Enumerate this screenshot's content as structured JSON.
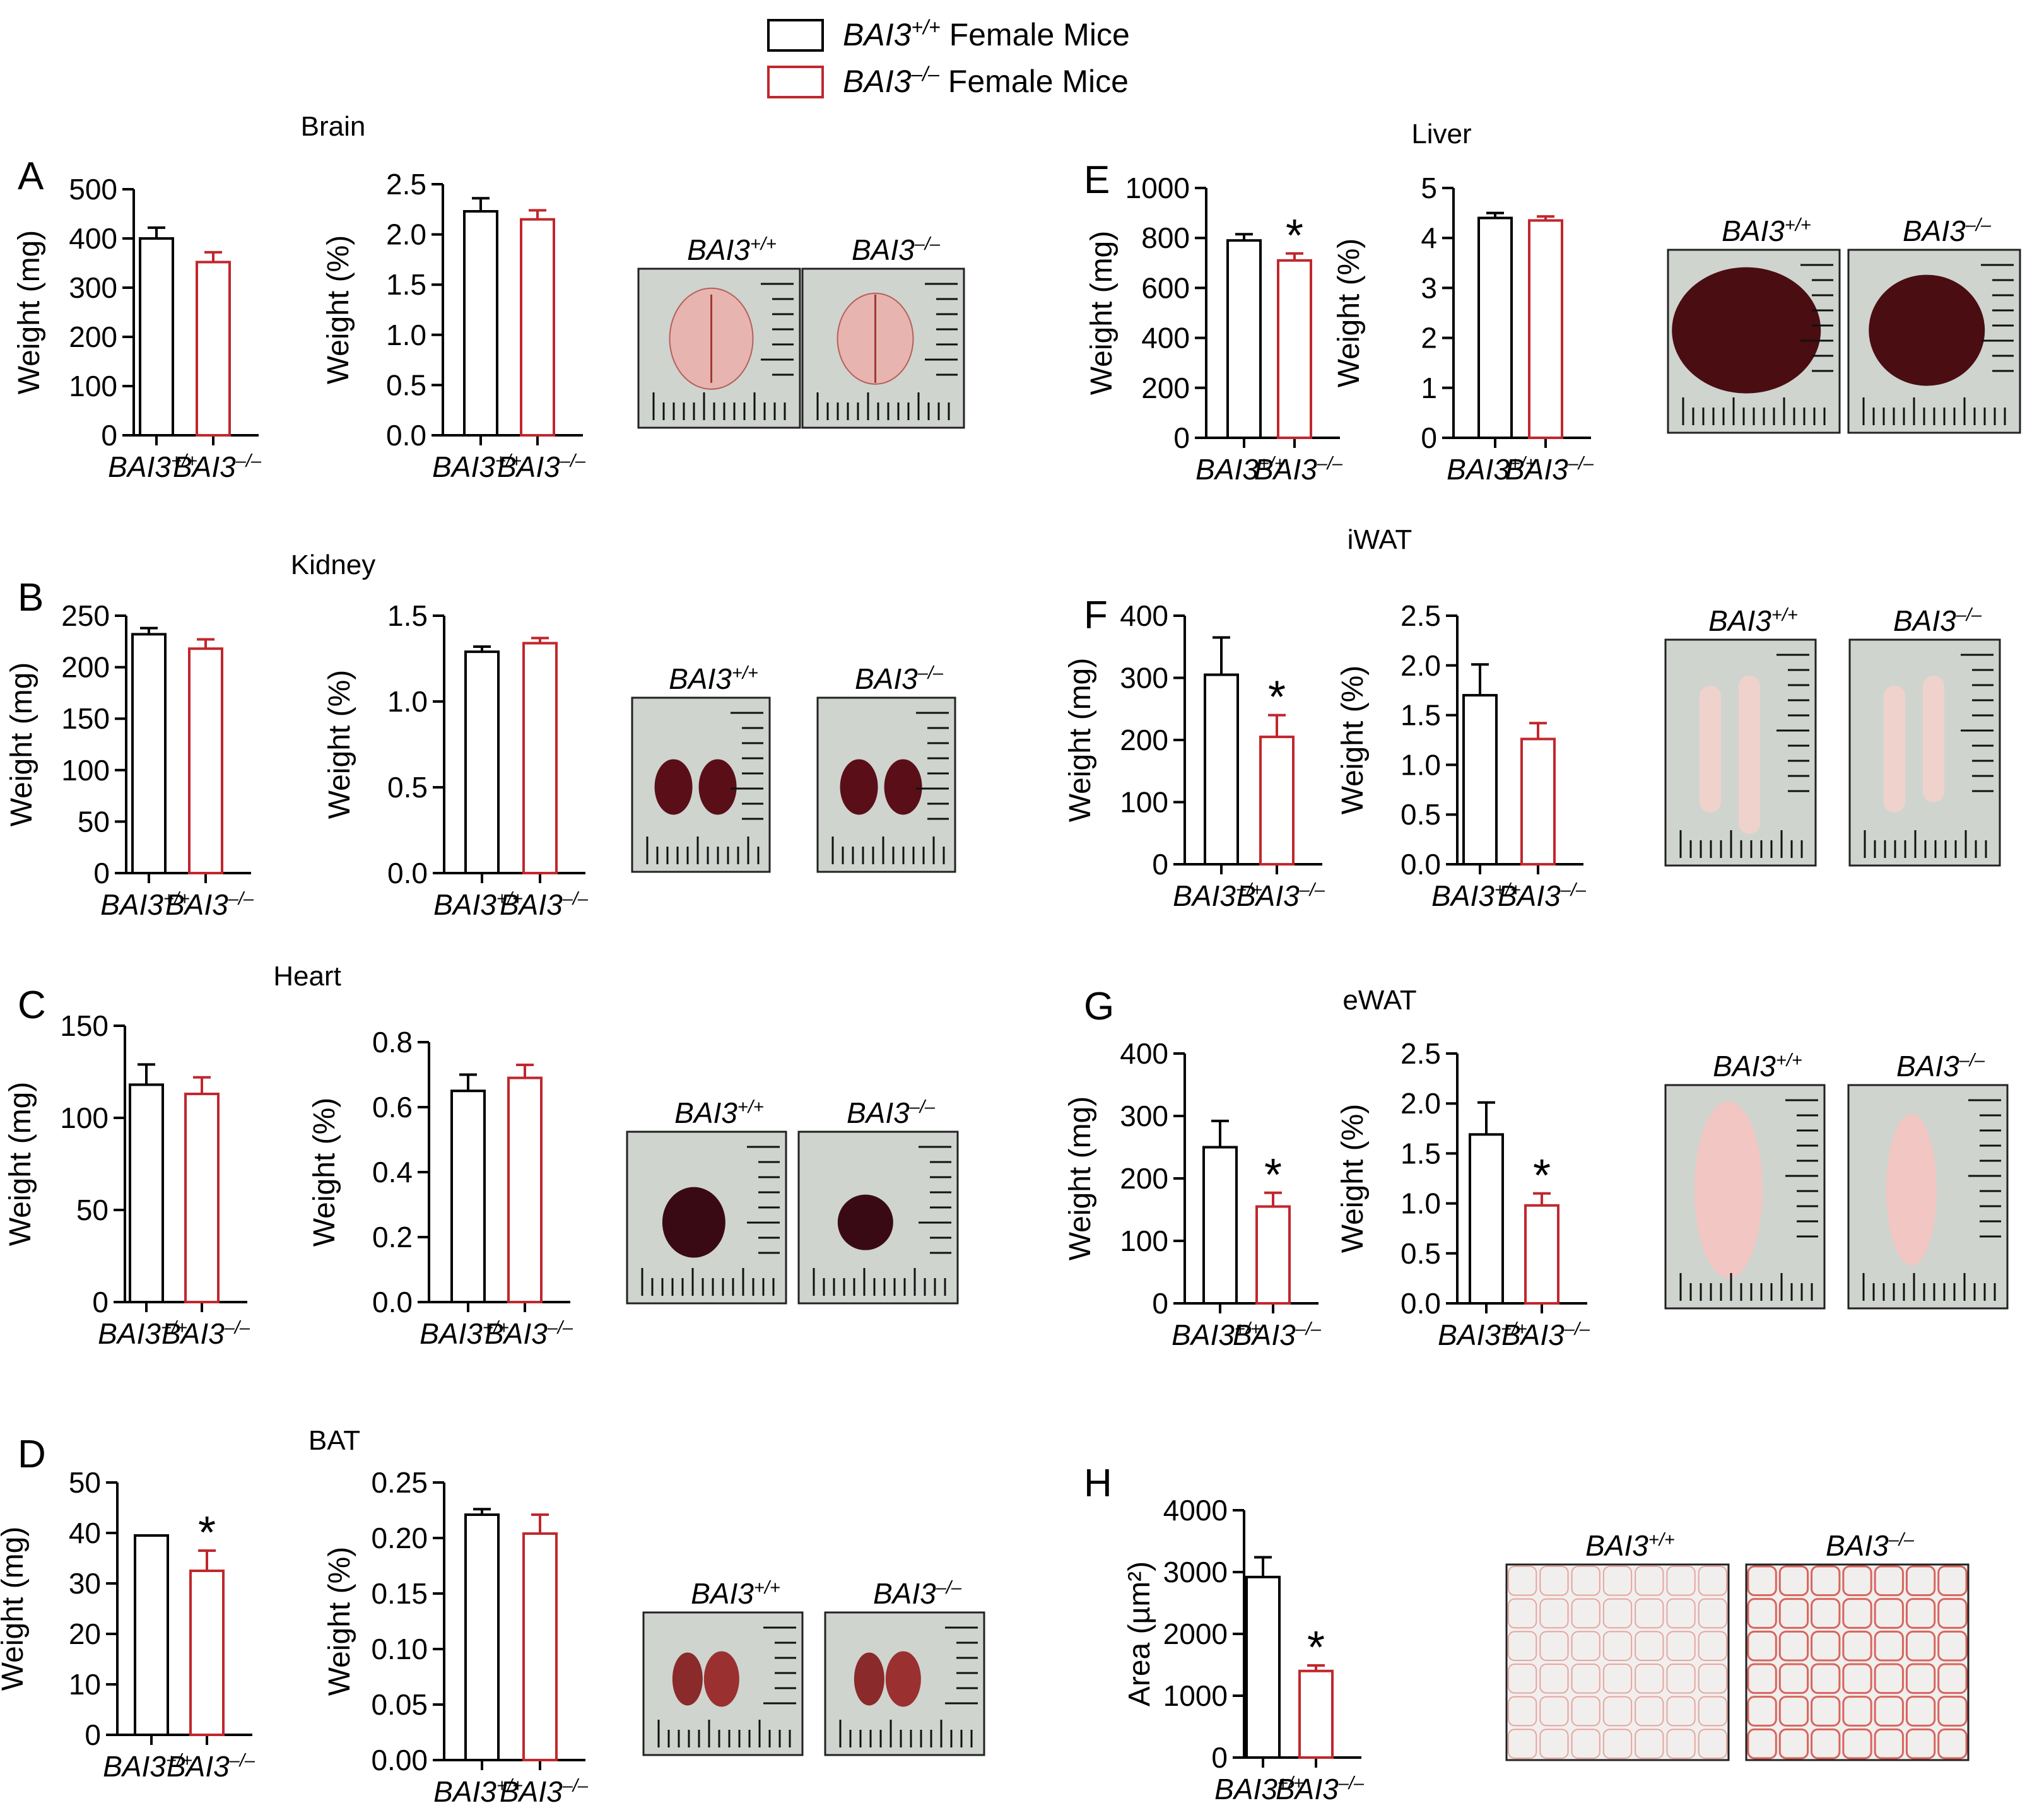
{
  "legend": {
    "items": [
      {
        "gene": "BAI3",
        "sup": "+/+",
        "label": "Female Mice",
        "color": "#000000"
      },
      {
        "gene": "BAI3",
        "sup": "–/–",
        "label": "Female Mice",
        "color": "#c0272d"
      }
    ]
  },
  "genotypes": [
    {
      "gene": "BAI3",
      "sup": "+/+"
    },
    {
      "gene": "BAI3",
      "sup": "–/–"
    }
  ],
  "colors": {
    "wt": "#000000",
    "ko": "#c0272d",
    "photo_bg": "#cfd4cf",
    "photo_border": "#222222"
  },
  "panels": [
    {
      "letter": "A",
      "title": "Brain"
    },
    {
      "letter": "B",
      "title": "Kidney"
    },
    {
      "letter": "C",
      "title": "Heart"
    },
    {
      "letter": "D",
      "title": "BAT"
    },
    {
      "letter": "E",
      "title": "Liver"
    },
    {
      "letter": "F",
      "title": "iWAT"
    },
    {
      "letter": "G",
      "title": "eWAT"
    },
    {
      "letter": "H",
      "title": ""
    }
  ],
  "chart_data": [
    {
      "id": "A1",
      "panel": "A",
      "type": "bar",
      "title": "Brain",
      "ylabel": "Weight (mg)",
      "ylim": [
        0,
        500
      ],
      "ticks": [
        0,
        100,
        200,
        300,
        400,
        500
      ],
      "decimals": 0,
      "categories": [
        "BAI3+/+",
        "BAI3–/–"
      ],
      "values": [
        400,
        352
      ],
      "errors": [
        22,
        20
      ],
      "significant": [
        false,
        false
      ]
    },
    {
      "id": "A2",
      "panel": "A",
      "type": "bar",
      "title": "Brain",
      "ylabel": "Weight (%)",
      "ylim": [
        0,
        2.5
      ],
      "ticks": [
        0,
        0.5,
        1.0,
        1.5,
        2.0,
        2.5
      ],
      "decimals": 1,
      "categories": [
        "BAI3+/+",
        "BAI3–/–"
      ],
      "values": [
        2.23,
        2.15
      ],
      "errors": [
        0.13,
        0.09
      ],
      "significant": [
        false,
        false
      ]
    },
    {
      "id": "B1",
      "panel": "B",
      "type": "bar",
      "title": "Kidney",
      "ylabel": "Weight (mg)",
      "ylim": [
        0,
        250
      ],
      "ticks": [
        0,
        50,
        100,
        150,
        200,
        250
      ],
      "decimals": 0,
      "categories": [
        "BAI3+/+",
        "BAI3–/–"
      ],
      "values": [
        232,
        218
      ],
      "errors": [
        6,
        9
      ],
      "significant": [
        false,
        false
      ]
    },
    {
      "id": "B2",
      "panel": "B",
      "type": "bar",
      "title": "Kidney",
      "ylabel": "Weight (%)",
      "ylim": [
        0,
        1.5
      ],
      "ticks": [
        0.0,
        0.5,
        1.0,
        1.5
      ],
      "decimals": 1,
      "categories": [
        "BAI3+/+",
        "BAI3–/–"
      ],
      "values": [
        1.29,
        1.34
      ],
      "errors": [
        0.03,
        0.03
      ],
      "significant": [
        false,
        false
      ]
    },
    {
      "id": "C1",
      "panel": "C",
      "type": "bar",
      "title": "Heart",
      "ylabel": "Weight (mg)",
      "ylim": [
        0,
        150
      ],
      "ticks": [
        0,
        50,
        100,
        150
      ],
      "decimals": 0,
      "categories": [
        "BAI3+/+",
        "BAI3–/–"
      ],
      "values": [
        118,
        113
      ],
      "errors": [
        11,
        9
      ],
      "significant": [
        false,
        false
      ]
    },
    {
      "id": "C2",
      "panel": "C",
      "type": "bar",
      "title": "Heart",
      "ylabel": "Weight (%)",
      "ylim": [
        0,
        0.8
      ],
      "ticks": [
        0.0,
        0.2,
        0.4,
        0.6,
        0.8
      ],
      "decimals": 1,
      "categories": [
        "BAI3+/+",
        "BAI3–/–"
      ],
      "values": [
        0.65,
        0.69
      ],
      "errors": [
        0.05,
        0.04
      ],
      "significant": [
        false,
        false
      ]
    },
    {
      "id": "D1",
      "panel": "D",
      "type": "bar",
      "title": "BAT",
      "ylabel": "Weight (mg)",
      "ylim": [
        0,
        50
      ],
      "ticks": [
        0,
        10,
        20,
        30,
        40,
        50
      ],
      "decimals": 0,
      "categories": [
        "BAI3+/+",
        "BAI3–/–"
      ],
      "values": [
        39.5,
        32.5
      ],
      "errors": [
        0,
        4
      ],
      "significant": [
        false,
        true
      ]
    },
    {
      "id": "D2",
      "panel": "D",
      "type": "bar",
      "title": "BAT",
      "ylabel": "Weight (%)",
      "ylim": [
        0,
        0.25
      ],
      "ticks": [
        0.0,
        0.05,
        0.1,
        0.15,
        0.2,
        0.25
      ],
      "decimals": 2,
      "categories": [
        "BAI3+/+",
        "BAI3–/–"
      ],
      "values": [
        0.221,
        0.204
      ],
      "errors": [
        0.005,
        0.017
      ],
      "significant": [
        false,
        false
      ]
    },
    {
      "id": "E1",
      "panel": "E",
      "type": "bar",
      "title": "Liver",
      "ylabel": "Weight (mg)",
      "ylim": [
        0,
        1000
      ],
      "ticks": [
        0,
        200,
        400,
        600,
        800,
        1000
      ],
      "decimals": 0,
      "categories": [
        "BAI3+/+",
        "BAI3–/–"
      ],
      "values": [
        790,
        710
      ],
      "errors": [
        25,
        28
      ],
      "significant": [
        false,
        true
      ]
    },
    {
      "id": "E2",
      "panel": "E",
      "type": "bar",
      "title": "Liver",
      "ylabel": "Weight (%)",
      "ylim": [
        0,
        5
      ],
      "ticks": [
        0,
        1,
        2,
        3,
        4,
        5
      ],
      "decimals": 0,
      "categories": [
        "BAI3+/+",
        "BAI3–/–"
      ],
      "values": [
        4.4,
        4.35
      ],
      "errors": [
        0.1,
        0.08
      ],
      "significant": [
        false,
        false
      ]
    },
    {
      "id": "F1",
      "panel": "F",
      "type": "bar",
      "title": "iWAT",
      "ylabel": "Weight (mg)",
      "ylim": [
        0,
        400
      ],
      "ticks": [
        0,
        100,
        200,
        300,
        400
      ],
      "decimals": 0,
      "categories": [
        "BAI3+/+",
        "BAI3–/–"
      ],
      "values": [
        305,
        205
      ],
      "errors": [
        60,
        35
      ],
      "significant": [
        false,
        true
      ]
    },
    {
      "id": "F2",
      "panel": "F",
      "type": "bar",
      "title": "iWAT",
      "ylabel": "Weight (%)",
      "ylim": [
        0,
        2.5
      ],
      "ticks": [
        0.0,
        0.5,
        1.0,
        1.5,
        2.0,
        2.5
      ],
      "decimals": 1,
      "categories": [
        "BAI3+/+",
        "BAI3–/–"
      ],
      "values": [
        1.7,
        1.26
      ],
      "errors": [
        0.31,
        0.16
      ],
      "significant": [
        false,
        false
      ]
    },
    {
      "id": "G1",
      "panel": "G",
      "type": "bar",
      "title": "eWAT",
      "ylabel": "Weight (mg)",
      "ylim": [
        0,
        400
      ],
      "ticks": [
        0,
        100,
        200,
        300,
        400
      ],
      "decimals": 0,
      "categories": [
        "BAI3+/+",
        "BAI3–/–"
      ],
      "values": [
        250,
        155
      ],
      "errors": [
        42,
        22
      ],
      "significant": [
        false,
        true
      ]
    },
    {
      "id": "G2",
      "panel": "G",
      "type": "bar",
      "title": "eWAT",
      "ylabel": "Weight (%)",
      "ylim": [
        0,
        2.5
      ],
      "ticks": [
        0.0,
        0.5,
        1.0,
        1.5,
        2.0,
        2.5
      ],
      "decimals": 1,
      "categories": [
        "BAI3+/+",
        "BAI3–/–"
      ],
      "values": [
        1.69,
        0.98
      ],
      "errors": [
        0.32,
        0.12
      ],
      "significant": [
        false,
        true
      ]
    },
    {
      "id": "H1",
      "panel": "H",
      "type": "bar",
      "title": "",
      "ylabel": "Area (µm²)",
      "ylim": [
        0,
        4000
      ],
      "ticks": [
        0,
        1000,
        2000,
        3000,
        4000
      ],
      "decimals": 0,
      "categories": [
        "BAI3+/+",
        "BAI3–/–"
      ],
      "values": [
        2920,
        1400
      ],
      "errors": [
        320,
        90
      ],
      "significant": [
        false,
        true
      ]
    }
  ],
  "photos": [
    {
      "id": "A",
      "kind": "brain",
      "items": [
        {
          "gene": "BAI3",
          "sup": "+/+"
        },
        {
          "gene": "BAI3",
          "sup": "–/–"
        }
      ]
    },
    {
      "id": "B",
      "kind": "kidney",
      "items": [
        {
          "gene": "BAI3",
          "sup": "+/+"
        },
        {
          "gene": "BAI3",
          "sup": "–/–"
        }
      ]
    },
    {
      "id": "C",
      "kind": "heart",
      "items": [
        {
          "gene": "BAI3",
          "sup": "+/+"
        },
        {
          "gene": "BAI3",
          "sup": "–/–"
        }
      ]
    },
    {
      "id": "D",
      "kind": "bat",
      "items": [
        {
          "gene": "BAI3",
          "sup": "+/+"
        },
        {
          "gene": "BAI3",
          "sup": "–/–"
        }
      ]
    },
    {
      "id": "E",
      "kind": "liver",
      "items": [
        {
          "gene": "BAI3",
          "sup": "+/+"
        },
        {
          "gene": "BAI3",
          "sup": "–/–"
        }
      ]
    },
    {
      "id": "F",
      "kind": "iwat",
      "items": [
        {
          "gene": "BAI3",
          "sup": "+/+"
        },
        {
          "gene": "BAI3",
          "sup": "–/–"
        }
      ]
    },
    {
      "id": "G",
      "kind": "ewat",
      "items": [
        {
          "gene": "BAI3",
          "sup": "+/+"
        },
        {
          "gene": "BAI3",
          "sup": "–/–"
        }
      ]
    },
    {
      "id": "H",
      "kind": "histology",
      "items": [
        {
          "gene": "BAI3",
          "sup": "+/+"
        },
        {
          "gene": "BAI3",
          "sup": "–/–"
        }
      ]
    }
  ]
}
